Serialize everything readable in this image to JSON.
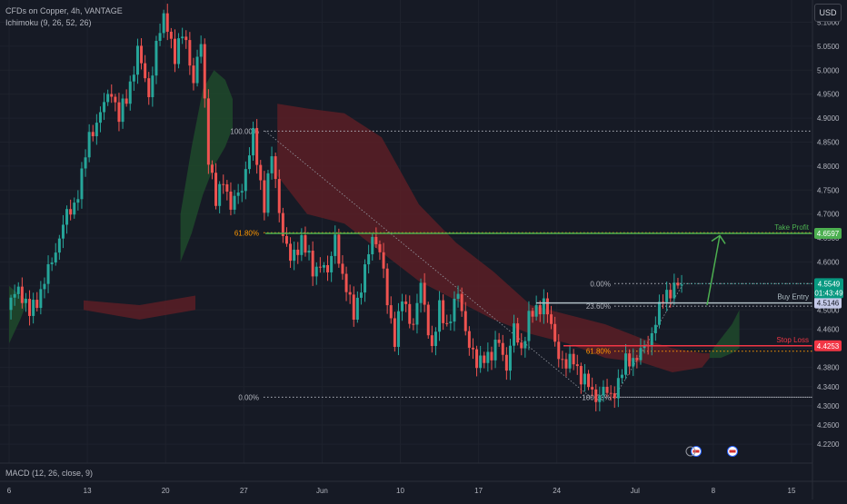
{
  "header": {
    "symbol_line": "CFDs on Copper, 4h, VANTAGE",
    "indicator_line": "Ichimoku (9, 26, 52, 26)",
    "macd_line": "MACD (12, 26, close, 9)",
    "currency": "USD"
  },
  "colors": {
    "background": "#161a25",
    "up": "#26a69a",
    "down": "#ef5350",
    "cloud_bull": "#1f4a2c",
    "cloud_bear": "#5a1f26",
    "take_profit": "#4caf50",
    "entry": "#b0bec5",
    "stop_loss": "#f23645",
    "fib_high": "#ff9800"
  },
  "chart_data": {
    "type": "candlestick",
    "title": "CFDs on Copper, 4h, VANTAGE",
    "ylim": [
      4.19,
      5.135
    ],
    "y_ticks": [
      4.22,
      4.26,
      4.3,
      4.34,
      4.38,
      4.42,
      4.46,
      4.5,
      4.55,
      4.6,
      4.65,
      4.7,
      4.75,
      4.8,
      4.85,
      4.9,
      4.95,
      5.0,
      5.05,
      5.1
    ],
    "y_tick_labels": [
      "4.2200",
      "4.2600",
      "4.3000",
      "4.3400",
      "4.3800",
      "4.4200",
      "4.4600",
      "4.5000",
      "4.5500",
      "4.6000",
      "4.6500",
      "4.7000",
      "4.7500",
      "4.8000",
      "4.8500",
      "4.9000",
      "4.9500",
      "5.0000",
      "5.0500",
      "5.1000"
    ],
    "x_ticks": [
      "6",
      "13",
      "20",
      "27",
      "Jun",
      "10",
      "17",
      "24",
      "Jul",
      "8",
      "15"
    ],
    "x_tick_positions": [
      0,
      42,
      84,
      126,
      168,
      210,
      252,
      294,
      336,
      378,
      420
    ],
    "price_path": [
      [
        0,
        4.5
      ],
      [
        6,
        4.55
      ],
      [
        12,
        4.49
      ],
      [
        18,
        4.54
      ],
      [
        24,
        4.6
      ],
      [
        30,
        4.68
      ],
      [
        36,
        4.72
      ],
      [
        40,
        4.78
      ],
      [
        44,
        4.86
      ],
      [
        50,
        4.91
      ],
      [
        56,
        4.96
      ],
      [
        60,
        4.9
      ],
      [
        64,
        4.94
      ],
      [
        70,
        5.04
      ],
      [
        76,
        4.95
      ],
      [
        80,
        5.05
      ],
      [
        85,
        5.12
      ],
      [
        90,
        5.02
      ],
      [
        95,
        5.09
      ],
      [
        100,
        4.97
      ],
      [
        104,
        5.06
      ],
      [
        108,
        4.82
      ],
      [
        112,
        4.72
      ],
      [
        116,
        4.78
      ],
      [
        120,
        4.71
      ],
      [
        126,
        4.76
      ],
      [
        132,
        4.86
      ],
      [
        138,
        4.72
      ],
      [
        142,
        4.82
      ],
      [
        148,
        4.66
      ],
      [
        152,
        4.6
      ],
      [
        158,
        4.65
      ],
      [
        164,
        4.58
      ],
      [
        168,
        4.6
      ],
      [
        172,
        4.57
      ],
      [
        176,
        4.66
      ],
      [
        180,
        4.56
      ],
      [
        186,
        4.5
      ],
      [
        190,
        4.54
      ],
      [
        196,
        4.66
      ],
      [
        200,
        4.62
      ],
      [
        204,
        4.52
      ],
      [
        208,
        4.44
      ],
      [
        212,
        4.52
      ],
      [
        218,
        4.47
      ],
      [
        222,
        4.55
      ],
      [
        228,
        4.42
      ],
      [
        232,
        4.5
      ],
      [
        236,
        4.47
      ],
      [
        242,
        4.53
      ],
      [
        248,
        4.43
      ],
      [
        252,
        4.38
      ],
      [
        256,
        4.41
      ],
      [
        260,
        4.4
      ],
      [
        264,
        4.44
      ],
      [
        268,
        4.38
      ],
      [
        272,
        4.46
      ],
      [
        276,
        4.42
      ],
      [
        280,
        4.48
      ],
      [
        284,
        4.5
      ],
      [
        288,
        4.52
      ],
      [
        292,
        4.46
      ],
      [
        296,
        4.41
      ],
      [
        300,
        4.38
      ],
      [
        304,
        4.4
      ],
      [
        308,
        4.36
      ],
      [
        312,
        4.34
      ],
      [
        316,
        4.32
      ],
      [
        320,
        4.33
      ],
      [
        324,
        4.32
      ],
      [
        328,
        4.35
      ],
      [
        332,
        4.39
      ],
      [
        336,
        4.4
      ],
      [
        340,
        4.41
      ],
      [
        344,
        4.43
      ],
      [
        348,
        4.48
      ],
      [
        352,
        4.52
      ],
      [
        356,
        4.545
      ],
      [
        360,
        4.553
      ]
    ],
    "ichimoku_cloud": {
      "bull_segments": [
        {
          "x": [
            0,
            6,
            10
          ],
          "top": [
            4.55,
            4.53,
            4.52
          ],
          "bottom": [
            4.43,
            4.48,
            4.52
          ]
        },
        {
          "x": [
            92,
            98,
            104,
            110,
            116,
            120
          ],
          "top": [
            4.7,
            4.84,
            4.96,
            5.0,
            4.98,
            4.94
          ],
          "bottom": [
            4.6,
            4.66,
            4.74,
            4.8,
            4.84,
            4.88
          ]
        },
        {
          "x": [
            376,
            382,
            388,
            392
          ],
          "top": [
            4.41,
            4.44,
            4.47,
            4.5
          ],
          "bottom": [
            4.4,
            4.4,
            4.41,
            4.42
          ]
        }
      ],
      "bear_segments": [
        {
          "x": [
            40,
            70,
            100
          ],
          "top": [
            4.52,
            4.51,
            4.53
          ],
          "bottom": [
            4.5,
            4.48,
            4.5
          ]
        },
        {
          "x": [
            144,
            160,
            180,
            200,
            220,
            240,
            260,
            280,
            300,
            320,
            340,
            356,
            372,
            376
          ],
          "top": [
            4.93,
            4.92,
            4.91,
            4.86,
            4.72,
            4.64,
            4.58,
            4.51,
            4.49,
            4.47,
            4.44,
            4.42,
            4.41,
            4.41
          ],
          "bottom": [
            4.78,
            4.7,
            4.68,
            4.62,
            4.56,
            4.52,
            4.48,
            4.45,
            4.43,
            4.4,
            4.39,
            4.37,
            4.38,
            4.4
          ]
        }
      ]
    },
    "fibonacci_left": {
      "levels": [
        {
          "label": "100.00%",
          "value": 4.873
        },
        {
          "label": "61.80%",
          "value": 4.661
        },
        {
          "label": "0.00%",
          "value": 4.318
        }
      ]
    },
    "fibonacci_right": {
      "levels": [
        {
          "label": "0.00%",
          "value": 4.555
        },
        {
          "label": "23.60%",
          "value": 4.508
        },
        {
          "label": "61.80%",
          "value": 4.414
        },
        {
          "label": "100.00%",
          "value": 4.318
        }
      ]
    },
    "trade_levels": [
      {
        "name": "Take Profit",
        "value": 4.6597,
        "price_label": "4.6597"
      },
      {
        "name": "Buy Entry",
        "value": 4.5146,
        "price_label": "4.5146"
      },
      {
        "name": "Stop Loss",
        "value": 4.4253,
        "price_label": "4.4253"
      }
    ],
    "last_price": {
      "value": 4.5549,
      "label": "4.5549",
      "countdown": "01:43:49"
    }
  }
}
